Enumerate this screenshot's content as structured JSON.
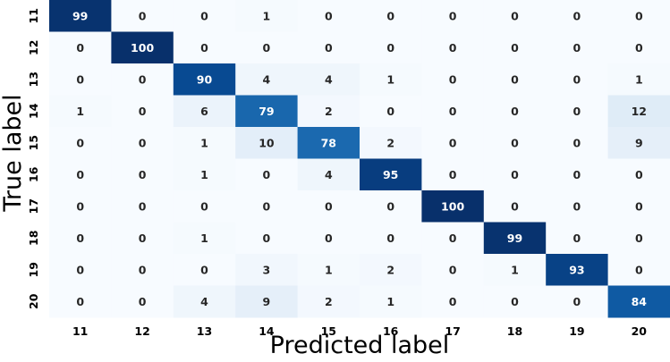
{
  "chart_data": {
    "type": "heatmap",
    "title": "",
    "xlabel": "Predicted label",
    "ylabel": "True label",
    "x_categories": [
      "11",
      "12",
      "13",
      "14",
      "15",
      "16",
      "17",
      "18",
      "19",
      "20"
    ],
    "y_categories": [
      "11",
      "12",
      "13",
      "14",
      "15",
      "16",
      "17",
      "18",
      "19",
      "20"
    ],
    "values": [
      [
        99,
        0,
        0,
        1,
        0,
        0,
        0,
        0,
        0,
        0
      ],
      [
        0,
        100,
        0,
        0,
        0,
        0,
        0,
        0,
        0,
        0
      ],
      [
        0,
        0,
        90,
        4,
        4,
        1,
        0,
        0,
        0,
        1
      ],
      [
        1,
        0,
        6,
        79,
        2,
        0,
        0,
        0,
        0,
        12
      ],
      [
        0,
        0,
        1,
        10,
        78,
        2,
        0,
        0,
        0,
        9
      ],
      [
        0,
        0,
        1,
        0,
        4,
        95,
        0,
        0,
        0,
        0
      ],
      [
        0,
        0,
        0,
        0,
        0,
        0,
        100,
        0,
        0,
        0
      ],
      [
        0,
        0,
        1,
        0,
        0,
        0,
        0,
        99,
        0,
        0
      ],
      [
        0,
        0,
        0,
        3,
        1,
        2,
        0,
        1,
        93,
        0
      ],
      [
        0,
        0,
        4,
        9,
        2,
        1,
        0,
        0,
        0,
        84
      ]
    ],
    "value_range": [
      0,
      100
    ],
    "colormap": "Blues",
    "colorbar": false,
    "grid": false
  }
}
